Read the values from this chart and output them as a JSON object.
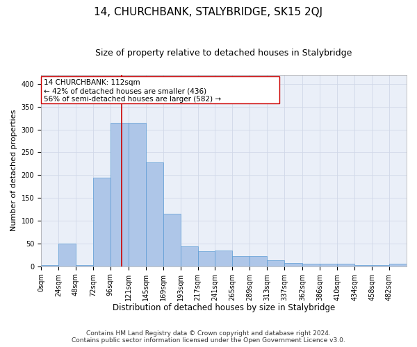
{
  "title": "14, CHURCHBANK, STALYBRIDGE, SK15 2QJ",
  "subtitle": "Size of property relative to detached houses in Stalybridge",
  "xlabel": "Distribution of detached houses by size in Stalybridge",
  "ylabel": "Number of detached properties",
  "bin_labels": [
    "0sqm",
    "24sqm",
    "48sqm",
    "72sqm",
    "96sqm",
    "121sqm",
    "145sqm",
    "169sqm",
    "193sqm",
    "217sqm",
    "241sqm",
    "265sqm",
    "289sqm",
    "313sqm",
    "337sqm",
    "362sqm",
    "386sqm",
    "410sqm",
    "434sqm",
    "458sqm",
    "482sqm"
  ],
  "bin_edges": [
    0,
    24,
    48,
    72,
    96,
    121,
    145,
    169,
    193,
    217,
    241,
    265,
    289,
    313,
    337,
    362,
    386,
    410,
    434,
    458,
    482,
    506
  ],
  "bar_heights": [
    2,
    50,
    2,
    195,
    315,
    315,
    228,
    115,
    44,
    33,
    35,
    22,
    22,
    14,
    7,
    5,
    5,
    5,
    2,
    2,
    5
  ],
  "bar_color": "#aec6e8",
  "bar_edgecolor": "#5b9bd5",
  "bar_linewidth": 0.5,
  "vline_x": 112,
  "vline_color": "#cc0000",
  "vline_linewidth": 1.2,
  "annotation_line1": "14 CHURCHBANK: 112sqm",
  "annotation_line2": "← 42% of detached houses are smaller (436)",
  "annotation_line3": "56% of semi-detached houses are larger (582) →",
  "ylim": [
    0,
    420
  ],
  "yticks": [
    0,
    50,
    100,
    150,
    200,
    250,
    300,
    350,
    400
  ],
  "grid_color": "#d0d8e8",
  "bg_color": "#eaeff8",
  "footer_line1": "Contains HM Land Registry data © Crown copyright and database right 2024.",
  "footer_line2": "Contains public sector information licensed under the Open Government Licence v3.0.",
  "title_fontsize": 11,
  "subtitle_fontsize": 9,
  "xlabel_fontsize": 8.5,
  "ylabel_fontsize": 8,
  "tick_fontsize": 7,
  "annotation_fontsize": 7.5,
  "footer_fontsize": 6.5
}
